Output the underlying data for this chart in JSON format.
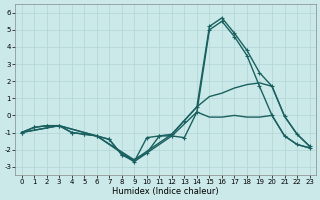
{
  "xlabel": "Humidex (Indice chaleur)",
  "xlim": [
    -0.5,
    23.5
  ],
  "ylim": [
    -3.5,
    6.5
  ],
  "yticks": [
    -3,
    -2,
    -1,
    0,
    1,
    2,
    3,
    4,
    5,
    6
  ],
  "xticks": [
    0,
    1,
    2,
    3,
    4,
    5,
    6,
    7,
    8,
    9,
    10,
    11,
    12,
    13,
    14,
    15,
    16,
    17,
    18,
    19,
    20,
    21,
    22,
    23
  ],
  "background_color": "#cce9e9",
  "line_color": "#1a6060",
  "grid_color": "#b0d4d4",
  "lines": [
    {
      "x": [
        0,
        1,
        2,
        3,
        4,
        5,
        6,
        7,
        8,
        9,
        10,
        11,
        12,
        13,
        14,
        15,
        16,
        17,
        18,
        19,
        20,
        21,
        22,
        23
      ],
      "y": [
        -1.0,
        -0.7,
        -0.6,
        -0.6,
        -1.0,
        -1.1,
        -1.2,
        -1.4,
        -2.3,
        -2.6,
        -2.2,
        -1.2,
        -1.1,
        -0.3,
        0.5,
        5.2,
        5.7,
        4.8,
        3.8,
        2.5,
        1.7,
        -0.05,
        -1.1,
        -1.8
      ],
      "marker": "+",
      "lw": 1.0
    },
    {
      "x": [
        0,
        1,
        2,
        3,
        4,
        5,
        6,
        7,
        8,
        9,
        10,
        11,
        12,
        13,
        14,
        15,
        16,
        17,
        18,
        19,
        20,
        21,
        22,
        23
      ],
      "y": [
        -1.0,
        -0.7,
        -0.6,
        -0.6,
        -1.0,
        -1.1,
        -1.2,
        -1.4,
        -2.3,
        -2.7,
        -1.3,
        -1.2,
        -1.2,
        -1.3,
        0.2,
        5.0,
        5.5,
        4.6,
        3.5,
        1.7,
        0.0,
        -1.2,
        -1.7,
        -1.9
      ],
      "marker": "+",
      "lw": 1.0
    },
    {
      "x": [
        0,
        3,
        6,
        9,
        12,
        14,
        15,
        16,
        17,
        18,
        19,
        20,
        21,
        22,
        23
      ],
      "y": [
        -1.0,
        -0.6,
        -1.2,
        -2.6,
        -1.1,
        0.5,
        1.1,
        1.3,
        1.6,
        1.8,
        1.9,
        1.7,
        -0.05,
        -1.1,
        -1.8
      ],
      "marker": null,
      "lw": 1.0
    },
    {
      "x": [
        0,
        3,
        6,
        9,
        12,
        14,
        15,
        16,
        17,
        18,
        19,
        20,
        21,
        22,
        23
      ],
      "y": [
        -1.0,
        -0.6,
        -1.2,
        -2.7,
        -1.2,
        0.2,
        -0.1,
        -0.1,
        -0.0,
        -0.1,
        -0.1,
        0.0,
        -1.2,
        -1.7,
        -1.9
      ],
      "marker": null,
      "lw": 1.0
    }
  ]
}
